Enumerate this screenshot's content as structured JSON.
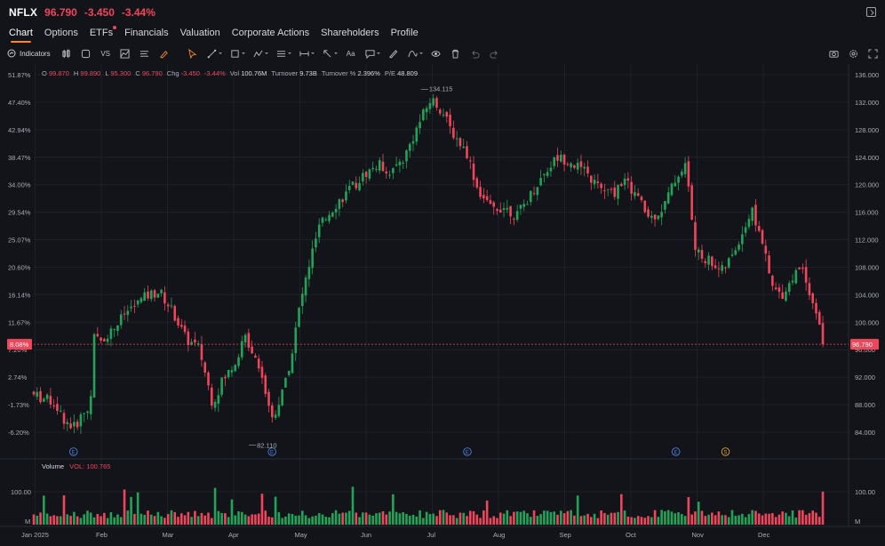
{
  "header": {
    "ticker": "NFLX",
    "price": "96.790",
    "change": "-3.450",
    "change_pct": "-3.44%"
  },
  "tabs": [
    {
      "label": "Chart",
      "active": true
    },
    {
      "label": "Options"
    },
    {
      "label": "ETFs",
      "dot": true
    },
    {
      "label": "Financials"
    },
    {
      "label": "Valuation"
    },
    {
      "label": "Corporate Actions"
    },
    {
      "label": "Shareholders"
    },
    {
      "label": "Profile"
    }
  ],
  "toolbar": {
    "indicators_label": "Indicators",
    "vs_label": "VS",
    "text_tool_label": "Aa"
  },
  "legend": {
    "o_label": "O",
    "o": "99.870",
    "h_label": "H",
    "h": "99.890",
    "l_label": "L",
    "l": "95.300",
    "c_label": "C",
    "c": "96.790",
    "chg_label": "Chg",
    "chg": "-3.450",
    "chg_pct": "-3.44%",
    "vol_label": "Vol",
    "vol": "100.76M",
    "turnover_label": "Turnover",
    "turnover": "9.73B",
    "turnover_pct_label": "Turnover %",
    "turnover_pct": "2.396%",
    "pe_label": "P/E",
    "pe": "48.809"
  },
  "volume_panel": {
    "label": "Volume",
    "vol_label": "VOL:",
    "vol_value": "100.765"
  },
  "colors": {
    "up": "#22a35a",
    "down": "#f0455a",
    "background": "#131419",
    "grid": "#1f2128",
    "accent": "#f58a2e"
  },
  "chart_data": {
    "type": "candlestick",
    "left_axis_ticks": [
      "51.87%",
      "47.40%",
      "42.94%",
      "38.47%",
      "34.00%",
      "29.54%",
      "25.07%",
      "20.60%",
      "16.14%",
      "11.67%",
      "7.20%",
      "2.74%",
      "-1.73%",
      "-6.20%"
    ],
    "right_axis_ticks": [
      "136.000",
      "132.000",
      "128.000",
      "124.000",
      "120.000",
      "116.000",
      "112.000",
      "108.000",
      "104.000",
      "100.000",
      "96.000",
      "92.000",
      "88.000",
      "84.000"
    ],
    "right_axis_values": [
      136,
      132,
      128,
      124,
      120,
      116,
      112,
      108,
      104,
      100,
      96,
      92,
      88,
      84
    ],
    "x_labels": [
      "Jan 2025",
      "Feb",
      "Mar",
      "Apr",
      "May",
      "Jun",
      "Jul",
      "Aug",
      "Sep",
      "Oct",
      "Nov",
      "Dec"
    ],
    "current_price_label": "96.790",
    "current_pct_label": "8.08%",
    "current_price": 96.79,
    "high_annotation": {
      "label": "134.115",
      "value": 134.115
    },
    "low_annotation": {
      "label": "82.110",
      "value": 82.11
    },
    "event_markers": [
      {
        "label": "E",
        "month_index": 0.6
      },
      {
        "label": "E",
        "month_index": 3.6
      },
      {
        "label": "E",
        "month_index": 6.55
      },
      {
        "label": "E",
        "month_index": 9.7
      },
      {
        "label": "S",
        "month_index": 10.45
      }
    ],
    "price_path": [
      [
        0.0,
        89.4
      ],
      [
        0.3,
        88.4
      ],
      [
        0.45,
        86.0
      ],
      [
        0.6,
        84.6
      ],
      [
        0.75,
        86.8
      ],
      [
        0.85,
        87.2
      ],
      [
        0.9,
        97.8
      ],
      [
        1.0,
        97.2
      ],
      [
        1.2,
        99.0
      ],
      [
        1.4,
        101.5
      ],
      [
        1.7,
        103.8
      ],
      [
        1.9,
        104.5
      ],
      [
        2.1,
        101.5
      ],
      [
        2.3,
        97.5
      ],
      [
        2.5,
        96.2
      ],
      [
        2.7,
        88.2
      ],
      [
        2.85,
        91.5
      ],
      [
        3.0,
        93.5
      ],
      [
        3.2,
        97.8
      ],
      [
        3.4,
        94.0
      ],
      [
        3.6,
        86.0
      ],
      [
        3.75,
        89.5
      ],
      [
        3.9,
        95.5
      ],
      [
        4.0,
        101.5
      ],
      [
        4.15,
        108.0
      ],
      [
        4.3,
        113.5
      ],
      [
        4.5,
        116.5
      ],
      [
        4.8,
        119.5
      ],
      [
        5.0,
        121.5
      ],
      [
        5.2,
        123.0
      ],
      [
        5.4,
        121.8
      ],
      [
        5.6,
        124.0
      ],
      [
        5.8,
        128.5
      ],
      [
        6.0,
        132.5
      ],
      [
        6.15,
        131.0
      ],
      [
        6.3,
        128.0
      ],
      [
        6.55,
        124.5
      ],
      [
        6.7,
        119.5
      ],
      [
        6.9,
        116.5
      ],
      [
        7.1,
        116.8
      ],
      [
        7.3,
        115.5
      ],
      [
        7.5,
        118.5
      ],
      [
        7.7,
        121.5
      ],
      [
        7.9,
        124.0
      ],
      [
        8.1,
        123.5
      ],
      [
        8.3,
        122.0
      ],
      [
        8.55,
        119.5
      ],
      [
        8.75,
        118.5
      ],
      [
        8.9,
        120.8
      ],
      [
        9.1,
        118.5
      ],
      [
        9.3,
        115.0
      ],
      [
        9.5,
        116.5
      ],
      [
        9.7,
        121.0
      ],
      [
        9.85,
        123.0
      ],
      [
        10.0,
        110.0
      ],
      [
        10.2,
        109.0
      ],
      [
        10.4,
        107.5
      ],
      [
        10.55,
        109.5
      ],
      [
        10.7,
        113.0
      ],
      [
        10.85,
        116.2
      ],
      [
        11.0,
        112.0
      ],
      [
        11.15,
        105.0
      ],
      [
        11.3,
        104.0
      ],
      [
        11.5,
        107.0
      ],
      [
        11.6,
        108.5
      ],
      [
        11.75,
        103.5
      ],
      [
        11.85,
        100.2
      ],
      [
        11.92,
        96.8
      ]
    ],
    "volume_axis_ticks": [
      "100.00",
      "M"
    ]
  }
}
